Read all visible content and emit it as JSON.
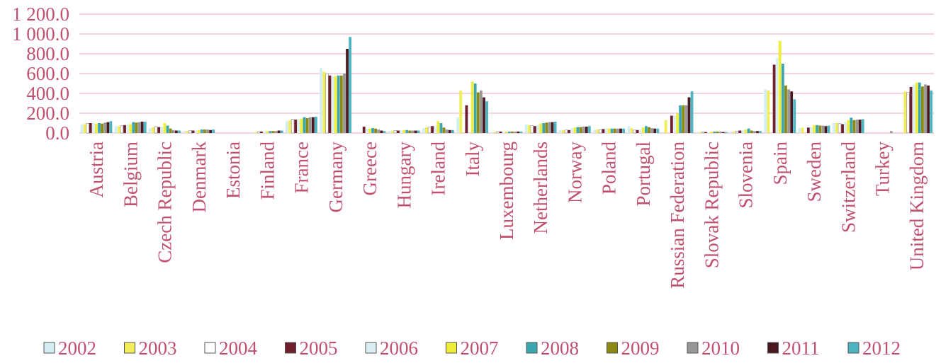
{
  "chart_data": {
    "type": "bar",
    "title": "",
    "xlabel": "",
    "ylabel": "",
    "ylim": [
      0,
      1200
    ],
    "yticks": [
      0,
      200,
      400,
      600,
      800,
      1000,
      1200
    ],
    "ytick_labels": [
      "0.0",
      "200.0",
      "400.0",
      "600.0",
      "800.0",
      "1 000.0",
      "1 200.0"
    ],
    "grid": true,
    "legend_position": "bottom",
    "label_color": "#c0506e",
    "grid_color": "#e8a8bc",
    "categories": [
      "Austria",
      "Belgium",
      "Czech Republic",
      "Denmark",
      "Estonia",
      "Finland",
      "France",
      "Germany",
      "Greece",
      "Hungary",
      "Ireland",
      "Italy",
      "Luxembourg",
      "Netherlands",
      "Norway",
      "Poland",
      "Portugal",
      "Russian Federation",
      "Slovak Republic",
      "Slovenia",
      "Spain",
      "Sweden",
      "Switzerland",
      "Turkey",
      "United Kingdom"
    ],
    "series": [
      {
        "name": "2002",
        "color": "#d3eef2",
        "values": [
          85,
          70,
          50,
          20,
          0,
          10,
          120,
          660,
          0,
          20,
          50,
          160,
          10,
          85,
          30,
          30,
          70,
          0,
          10,
          15,
          440,
          50,
          100,
          0,
          0
        ]
      },
      {
        "name": "2003",
        "color": "#f1ee5a",
        "values": [
          90,
          70,
          60,
          20,
          0,
          10,
          130,
          620,
          0,
          20,
          60,
          430,
          10,
          80,
          30,
          35,
          50,
          130,
          10,
          15,
          430,
          55,
          100,
          0,
          420
        ]
      },
      {
        "name": "2004",
        "color": "#ffffff",
        "values": [
          95,
          75,
          65,
          25,
          0,
          15,
          140,
          600,
          0,
          25,
          60,
          0,
          15,
          75,
          30,
          35,
          30,
          0,
          10,
          20,
          0,
          0,
          95,
          0,
          410
        ]
      },
      {
        "name": "2005",
        "color": "#6e1f2e",
        "values": [
          100,
          80,
          60,
          25,
          0,
          15,
          135,
          580,
          65,
          25,
          70,
          280,
          15,
          70,
          30,
          40,
          30,
          175,
          10,
          25,
          690,
          55,
          90,
          0,
          465
        ]
      },
      {
        "name": "2006",
        "color": "#dceff0",
        "values": [
          95,
          85,
          65,
          25,
          0,
          15,
          140,
          570,
          45,
          25,
          70,
          0,
          15,
          80,
          50,
          45,
          40,
          180,
          10,
          30,
          760,
          60,
          110,
          0,
          490
        ]
      },
      {
        "name": "2007",
        "color": "#eded3a",
        "values": [
          95,
          90,
          100,
          30,
          0,
          20,
          145,
          575,
          45,
          30,
          120,
          520,
          15,
          95,
          55,
          45,
          55,
          195,
          15,
          35,
          930,
          80,
          130,
          0,
          510
        ]
      },
      {
        "name": "2008",
        "color": "#3ba6b0",
        "values": [
          100,
          110,
          75,
          35,
          0,
          20,
          160,
          580,
          50,
          30,
          100,
          500,
          15,
          100,
          60,
          45,
          70,
          280,
          15,
          45,
          700,
          80,
          155,
          0,
          510
        ]
      },
      {
        "name": "2009",
        "color": "#8b8b12",
        "values": [
          95,
          105,
          45,
          35,
          0,
          20,
          150,
          580,
          45,
          25,
          55,
          410,
          15,
          105,
          60,
          45,
          60,
          280,
          15,
          25,
          480,
          75,
          130,
          0,
          470
        ]
      },
      {
        "name": "2010",
        "color": "#989898",
        "values": [
          105,
          110,
          30,
          35,
          0,
          20,
          160,
          600,
          35,
          25,
          35,
          430,
          15,
          110,
          65,
          45,
          50,
          280,
          15,
          20,
          440,
          75,
          135,
          20,
          490
        ]
      },
      {
        "name": "2011",
        "color": "#4a1821",
        "values": [
          110,
          115,
          25,
          30,
          0,
          25,
          160,
          850,
          25,
          25,
          30,
          360,
          15,
          110,
          65,
          45,
          45,
          360,
          10,
          20,
          420,
          70,
          135,
          0,
          480
        ]
      },
      {
        "name": "2012",
        "color": "#4db4c0",
        "values": [
          120,
          115,
          25,
          35,
          0,
          25,
          165,
          970,
          20,
          25,
          30,
          320,
          15,
          115,
          70,
          45,
          45,
          420,
          10,
          20,
          340,
          75,
          140,
          0,
          430
        ]
      }
    ]
  }
}
